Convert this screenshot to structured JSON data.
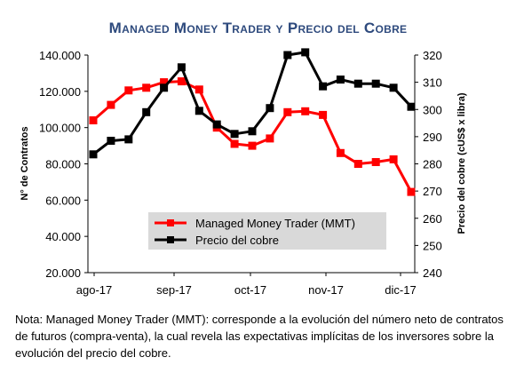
{
  "chart_data": {
    "type": "line",
    "title": "Managed Money Trader y Precio del Cobre",
    "ylabel_left": "N° de Contratos",
    "ylabel_right": "Precio del cobre (cUS$ x libra)",
    "ylim_left": [
      20000,
      140000
    ],
    "ylim_right": [
      240,
      320
    ],
    "yticks_left": [
      "20.000",
      "40.000",
      "60.000",
      "80.000",
      "100.000",
      "120.000",
      "140.000"
    ],
    "yticks_right": [
      "240",
      "250",
      "260",
      "270",
      "280",
      "290",
      "300",
      "310",
      "320"
    ],
    "x_ticks": [
      "ago-17",
      "sep-17",
      "oct-17",
      "nov-17",
      "dic-17"
    ],
    "legend_position": "lower-center",
    "grid": false,
    "series": [
      {
        "name": "Managed Money Trader (MMT)",
        "axis": "left",
        "color": "#ff0000",
        "values": [
          104000,
          112500,
          120500,
          122000,
          125000,
          125500,
          121000,
          100000,
          91000,
          90000,
          94000,
          108500,
          109000,
          107000,
          86000,
          80000,
          81000,
          82500,
          64500
        ]
      },
      {
        "name": "Precio del cobre",
        "axis": "right",
        "color": "#000000",
        "values": [
          283.5,
          288.5,
          289,
          299,
          308,
          315.5,
          299.5,
          294.5,
          291,
          292,
          300.5,
          320,
          321,
          308.5,
          311,
          309.5,
          309.5,
          308,
          301
        ]
      }
    ]
  },
  "note": "Nota: Managed Money Trader (MMT): corresponde a la evolución del número neto de contratos de futuros (compra-venta), la cual revela las expectativas implícitas de los inversores sobre la evolución del precio del cobre."
}
